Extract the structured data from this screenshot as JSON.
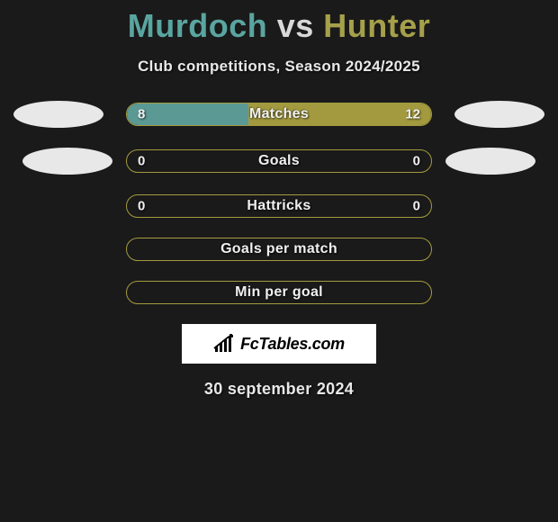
{
  "title": {
    "player1": "Murdoch",
    "vs": "vs",
    "player2": "Hunter",
    "player1_color": "#5aa5a0",
    "vs_color": "#d8d8d8",
    "player2_color": "#a5a04a"
  },
  "subtitle": "Club competitions, Season 2024/2025",
  "colors": {
    "background": "#1a1a1a",
    "p1_fill": "#5a9994",
    "p2_fill": "#a39a3f",
    "ellipse": "#e8e8e8",
    "text": "#f0f0f0"
  },
  "rows": [
    {
      "label": "Matches",
      "left_val": "8",
      "right_val": "12",
      "left_pct": 40,
      "right_pct": 60,
      "border_color": "#a39a3f",
      "show_ellipses": true,
      "ellipse_class": ""
    },
    {
      "label": "Goals",
      "left_val": "0",
      "right_val": "0",
      "left_pct": 0,
      "right_pct": 0,
      "border_color": "#a39a3f",
      "show_ellipses": true,
      "ellipse_class": "r2"
    },
    {
      "label": "Hattricks",
      "left_val": "0",
      "right_val": "0",
      "left_pct": 0,
      "right_pct": 0,
      "border_color": "#a39a3f",
      "show_ellipses": false
    },
    {
      "label": "Goals per match",
      "left_val": "",
      "right_val": "",
      "left_pct": 0,
      "right_pct": 0,
      "border_color": "#a39a3f",
      "show_ellipses": false
    },
    {
      "label": "Min per goal",
      "left_val": "",
      "right_val": "",
      "left_pct": 0,
      "right_pct": 0,
      "border_color": "#a39a3f",
      "show_ellipses": false
    }
  ],
  "watermark": {
    "text": "FcTables.com"
  },
  "date": "30 september 2024",
  "layout": {
    "pill_width": 340,
    "pill_height": 26,
    "ellipse_w": 100,
    "ellipse_h": 30
  }
}
